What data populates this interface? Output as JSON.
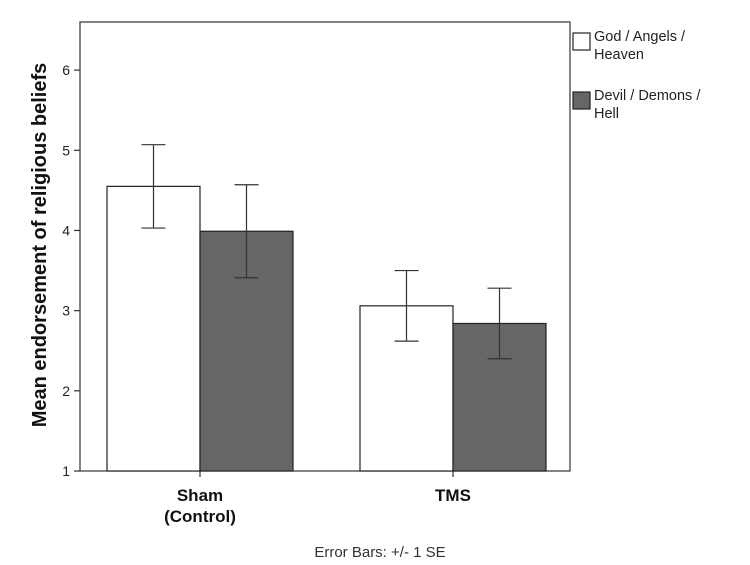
{
  "chart_data": {
    "type": "bar",
    "categories": [
      [
        "Sham",
        "(Control)"
      ],
      [
        "TMS"
      ]
    ],
    "series": [
      {
        "name": "God / Angels / Heaven",
        "name_lines": [
          "God / Angels /",
          "Heaven"
        ],
        "values": [
          4.55,
          3.06
        ],
        "se": [
          0.52,
          0.44
        ],
        "color": "#ffffff"
      },
      {
        "name": "Devil / Demons / Hell",
        "name_lines": [
          "Devil / Demons /",
          "Hell"
        ],
        "values": [
          3.99,
          2.84
        ],
        "se": [
          0.58,
          0.44
        ],
        "color": "#666666"
      }
    ],
    "ylabel": "Mean endorsement of religious beliefs",
    "yticks": [
      1,
      2,
      3,
      4,
      5,
      6
    ],
    "ylim": [
      1,
      6.6
    ],
    "legend_position": "top-right",
    "footnote": "Error Bars: +/- 1 SE"
  }
}
